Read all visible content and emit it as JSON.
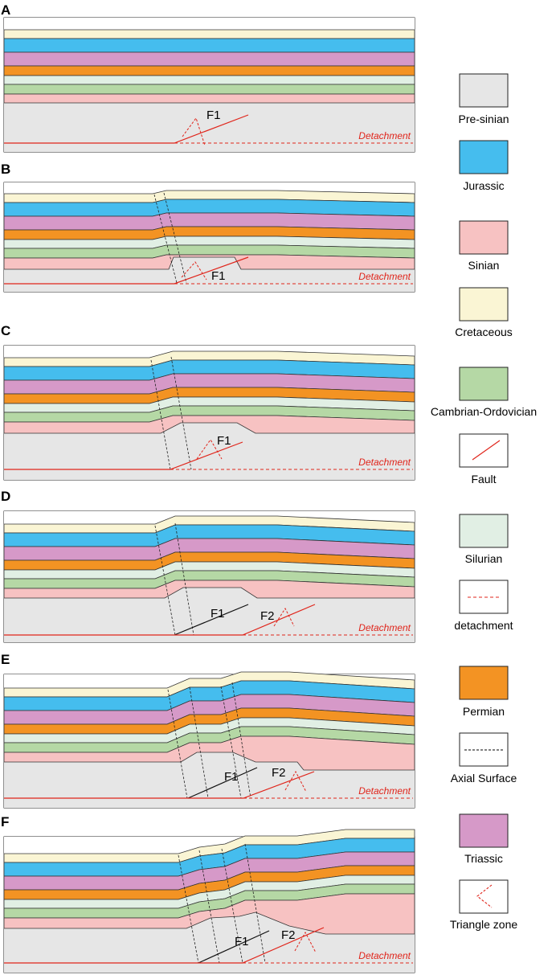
{
  "figure": {
    "panels": [
      {
        "label": "A",
        "faults": [
          "F1"
        ],
        "detachment_label": "Detachment"
      },
      {
        "label": "B",
        "faults": [
          "F1"
        ],
        "detachment_label": "Detachment"
      },
      {
        "label": "C",
        "faults": [
          "F1"
        ],
        "detachment_label": "Detachment"
      },
      {
        "label": "D",
        "faults": [
          "F1",
          "F2"
        ],
        "detachment_label": "Detachment"
      },
      {
        "label": "E",
        "faults": [
          "F1",
          "F2"
        ],
        "detachment_label": "Detachment"
      },
      {
        "label": "F",
        "faults": [
          "F1",
          "F2"
        ],
        "detachment_label": "Detachment"
      }
    ],
    "layer_colors": {
      "cretaceous": "#faf5d4",
      "jurassic": "#45bdee",
      "triassic": "#d699c8",
      "permian": "#f39323",
      "silurian": "#e1efe4",
      "cambrian_ordovician": "#b5d8a5",
      "sinian": "#f7c2c2",
      "presinian": "#e6e6e6"
    },
    "fault_color": "#e0251b"
  },
  "legend": {
    "items": [
      {
        "name": "Pre-sinian",
        "swatch": "fill",
        "color": "#e6e6e6"
      },
      {
        "name": "Jurassic",
        "swatch": "fill",
        "color": "#45bdee"
      },
      {
        "name": "Sinian",
        "swatch": "fill",
        "color": "#f7c2c2"
      },
      {
        "name": "Cretaceous",
        "swatch": "fill",
        "color": "#faf5d4"
      },
      {
        "name": "Cambrian-Ordovician",
        "swatch": "fill",
        "color": "#b5d8a5"
      },
      {
        "name": "Fault",
        "swatch": "fault",
        "color": "#e0251b"
      },
      {
        "name": "Silurian",
        "swatch": "fill",
        "color": "#e1efe4"
      },
      {
        "name": "detachment",
        "swatch": "detachment",
        "color": "#e0251b"
      },
      {
        "name": "Permian",
        "swatch": "fill",
        "color": "#f39323"
      },
      {
        "name": "Axial Surface",
        "swatch": "axial",
        "color": "#000000"
      },
      {
        "name": "Triassic",
        "swatch": "fill",
        "color": "#d699c8"
      },
      {
        "name": "Triangle zone",
        "swatch": "triangle",
        "color": "#e0251b"
      }
    ]
  }
}
